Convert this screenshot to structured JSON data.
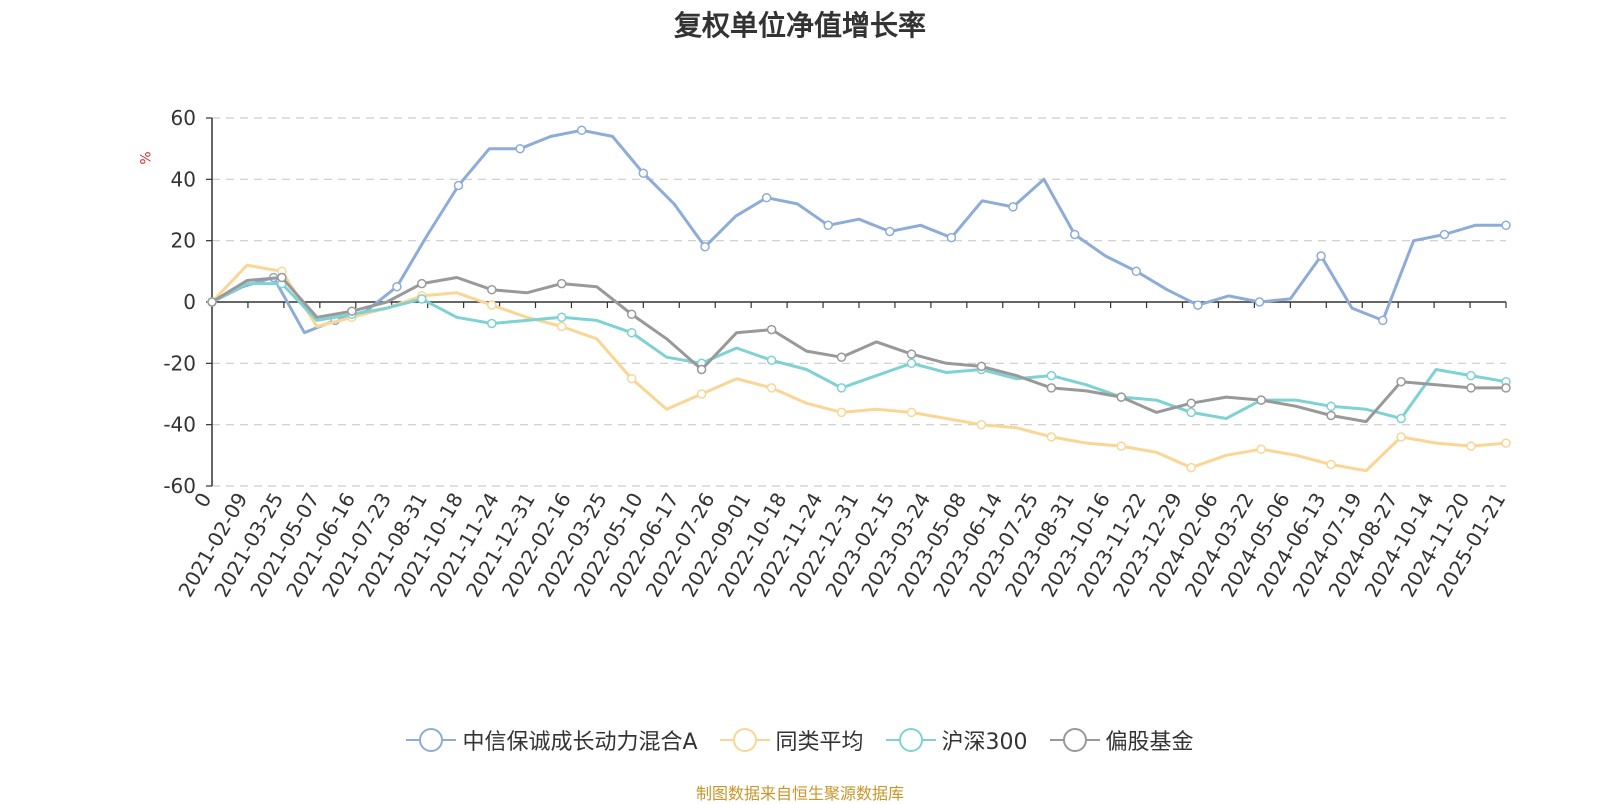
{
  "chart_data": {
    "type": "line",
    "title": "复权单位净值增长率",
    "ylabel": "%",
    "ylim": [
      -60,
      60
    ],
    "yticks": [
      60,
      40,
      20,
      0,
      -20,
      -40,
      -60
    ],
    "xticks": [
      "0",
      "2021-02-09",
      "2021-03-25",
      "2021-05-07",
      "2021-06-16",
      "2021-07-23",
      "2021-08-31",
      "2021-10-18",
      "2021-11-24",
      "2021-12-31",
      "2022-02-16",
      "2022-03-25",
      "2022-05-10",
      "2022-06-17",
      "2022-07-26",
      "2022-09-01",
      "2022-10-18",
      "2022-11-24",
      "2022-12-31",
      "2023-02-15",
      "2023-03-24",
      "2023-05-08",
      "2023-06-14",
      "2023-07-25",
      "2023-08-31",
      "2023-10-16",
      "2023-11-22",
      "2023-12-29",
      "2024-02-06",
      "2024-03-22",
      "2024-05-06",
      "2024-06-13",
      "2024-07-19",
      "2024-08-27",
      "2024-10-14",
      "2024-11-20",
      "2025-01-21"
    ],
    "grid": "horizontal-dashed",
    "legend_position": "bottom",
    "series": [
      {
        "name": "中信保诚成长动力混合A",
        "color": "#8eacd8",
        "values": [
          0,
          5,
          8,
          -10,
          -6,
          -3,
          5,
          22,
          38,
          50,
          50,
          54,
          56,
          54,
          42,
          32,
          18,
          28,
          34,
          32,
          25,
          27,
          23,
          25,
          21,
          33,
          31,
          40,
          22,
          15,
          10,
          4,
          -1,
          2,
          0,
          1,
          15,
          -2,
          -6,
          20,
          22,
          25,
          25
        ]
      },
      {
        "name": "同类平均",
        "color": "#fad694",
        "values": [
          0,
          12,
          10,
          -8,
          -5,
          -2,
          2,
          3,
          -1,
          -5,
          -8,
          -12,
          -25,
          -35,
          -30,
          -25,
          -28,
          -33,
          -36,
          -35,
          -36,
          -38,
          -40,
          -41,
          -44,
          -46,
          -47,
          -49,
          -54,
          -50,
          -48,
          -50,
          -53,
          -55,
          -44,
          -46,
          -47,
          -46
        ]
      },
      {
        "name": "沪深300",
        "color": "#7fd2d3",
        "values": [
          0,
          6,
          6,
          -6,
          -4,
          -2,
          1,
          -5,
          -7,
          -6,
          -5,
          -6,
          -10,
          -18,
          -20,
          -15,
          -19,
          -22,
          -28,
          -24,
          -20,
          -23,
          -22,
          -25,
          -24,
          -27,
          -31,
          -32,
          -36,
          -38,
          -32,
          -32,
          -34,
          -35,
          -38,
          -22,
          -24,
          -26
        ]
      },
      {
        "name": "偏股基金",
        "color": "#999999",
        "values": [
          0,
          7,
          8,
          -5,
          -3,
          0,
          6,
          8,
          4,
          3,
          6,
          5,
          -4,
          -12,
          -22,
          -10,
          -9,
          -16,
          -18,
          -13,
          -17,
          -20,
          -21,
          -24,
          -28,
          -29,
          -31,
          -36,
          -33,
          -31,
          -32,
          -34,
          -37,
          -39,
          -26,
          -27,
          -28,
          -28
        ]
      }
    ]
  },
  "footer": {
    "source": "制图数据来自恒生聚源数据库"
  }
}
